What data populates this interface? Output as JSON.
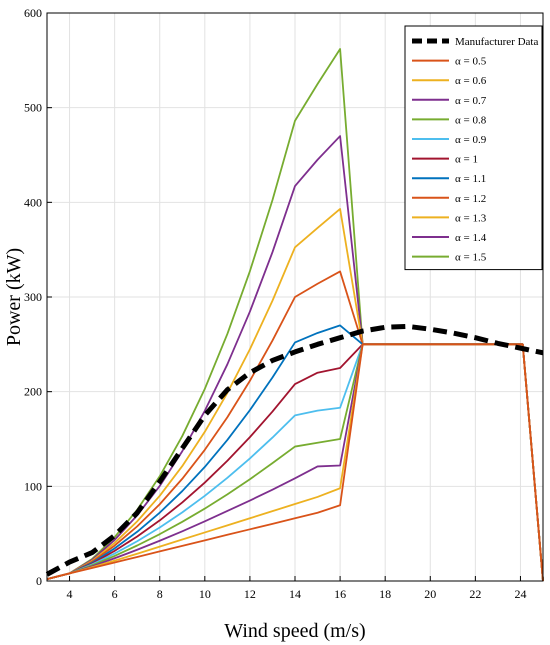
{
  "chart_data": {
    "type": "line",
    "xlabel": "Wind speed (m/s)",
    "ylabel": "Power (kW)",
    "xlim": [
      3,
      25
    ],
    "ylim": [
      0,
      600
    ],
    "x_ticks": [
      4,
      6,
      8,
      10,
      12,
      14,
      16,
      18,
      20,
      22,
      24
    ],
    "y_ticks": [
      0,
      100,
      200,
      300,
      400,
      500,
      600
    ],
    "grid": true,
    "legend_position": "top-right",
    "x": [
      3,
      4,
      5,
      6,
      7,
      8,
      9,
      10,
      11,
      12,
      13,
      14,
      15,
      16,
      17,
      18,
      19,
      20,
      21,
      22,
      23,
      24,
      24.1,
      25
    ],
    "series": [
      {
        "name": "Manufacturer Data",
        "color": "#000000",
        "dashed": true,
        "points": [
          [
            3,
            7
          ],
          [
            4,
            20
          ],
          [
            5,
            30
          ],
          [
            6,
            48
          ],
          [
            7,
            72
          ],
          [
            8,
            105
          ],
          [
            9,
            140
          ],
          [
            10,
            175
          ],
          [
            11,
            202
          ],
          [
            12,
            220
          ],
          [
            13,
            233
          ],
          [
            14,
            242
          ],
          [
            15,
            250
          ],
          [
            16,
            257
          ],
          [
            17,
            264
          ],
          [
            18,
            268
          ],
          [
            19,
            269
          ],
          [
            20,
            266
          ],
          [
            21,
            262
          ],
          [
            22,
            257
          ],
          [
            23,
            251
          ],
          [
            24,
            246
          ],
          [
            25,
            241
          ]
        ]
      },
      {
        "name": "α = 0.5",
        "color": "#D95319",
        "values": [
          2,
          8,
          13.7,
          19.6,
          25.4,
          31.3,
          37.1,
          42.9,
          48.8,
          54.6,
          60.4,
          66.3,
          72.1,
          80,
          250,
          250,
          250,
          250,
          250,
          250,
          250,
          250,
          250,
          0
        ]
      },
      {
        "name": "α = 0.6",
        "color": "#EDB120",
        "values": [
          2,
          8,
          14.5,
          21.5,
          28.8,
          36.3,
          43.8,
          51.3,
          58.8,
          66.3,
          73.8,
          81.3,
          88.8,
          98,
          250,
          250,
          250,
          250,
          250,
          250,
          250,
          250,
          250,
          0
        ]
      },
      {
        "name": "α = 0.7",
        "color": "#7E2F8E",
        "values": [
          2,
          8,
          15.5,
          24,
          33,
          42.5,
          52.5,
          63,
          74,
          85,
          96.5,
          108.5,
          121,
          122,
          250,
          250,
          250,
          250,
          250,
          250,
          250,
          250,
          250,
          0
        ]
      },
      {
        "name": "α = 0.8",
        "color": "#77AC30",
        "values": [
          2,
          8,
          16.5,
          26.5,
          37.5,
          49.5,
          62.5,
          76.5,
          91.5,
          107.5,
          124.5,
          142,
          146,
          150,
          250,
          250,
          250,
          250,
          250,
          250,
          250,
          250,
          250,
          0
        ]
      },
      {
        "name": "α = 0.9",
        "color": "#4DBEEE",
        "values": [
          2,
          8,
          17.5,
          29,
          42,
          56.5,
          72.5,
          90,
          109,
          129.5,
          151.5,
          175,
          180,
          183,
          250,
          250,
          250,
          250,
          250,
          250,
          250,
          250,
          250,
          0
        ]
      },
      {
        "name": "α = 1",
        "color": "#A2142F",
        "values": [
          2,
          8,
          18.3,
          31.8,
          47,
          64,
          83,
          104,
          127,
          152,
          179,
          208,
          220,
          225,
          250,
          250,
          250,
          250,
          250,
          250,
          250,
          250,
          250,
          0
        ]
      },
      {
        "name": "α = 1.1",
        "color": "#0072BD",
        "values": [
          2,
          8,
          19.2,
          34.5,
          52,
          72.2,
          95,
          120.5,
          149,
          180.5,
          215,
          252,
          262,
          270,
          250,
          250,
          250,
          250,
          250,
          250,
          250,
          250,
          250,
          0
        ]
      },
      {
        "name": "α = 1.2",
        "color": "#D95319",
        "values": [
          2,
          8,
          20.3,
          37.4,
          57.7,
          81.1,
          108,
          138.6,
          173,
          211.5,
          254,
          300,
          314,
          327,
          250,
          250,
          250,
          250,
          250,
          250,
          250,
          250,
          250,
          0
        ]
      },
      {
        "name": "α = 1.3",
        "color": "#EDB120",
        "values": [
          2,
          8,
          21.2,
          40.2,
          63,
          90,
          121.4,
          157.6,
          198.7,
          244.8,
          296,
          352.5,
          373,
          393,
          250,
          250,
          250,
          250,
          250,
          250,
          250,
          250,
          250,
          0
        ]
      },
      {
        "name": "α = 1.4",
        "color": "#7E2F8E",
        "values": [
          2,
          8,
          22.3,
          43.4,
          69.3,
          100.4,
          137.1,
          179.8,
          228.9,
          284.6,
          347.3,
          417.2,
          445,
          470,
          250,
          250,
          250,
          250,
          250,
          250,
          250,
          250,
          250,
          0
        ]
      },
      {
        "name": "α = 1.5",
        "color": "#77AC30",
        "values": [
          2,
          8,
          23.2,
          46.3,
          75.2,
          110.6,
          153.1,
          203,
          261,
          327.3,
          402.3,
          486.2,
          525,
          562,
          250,
          250,
          250,
          250,
          250,
          250,
          250,
          250,
          250,
          0
        ]
      }
    ]
  }
}
